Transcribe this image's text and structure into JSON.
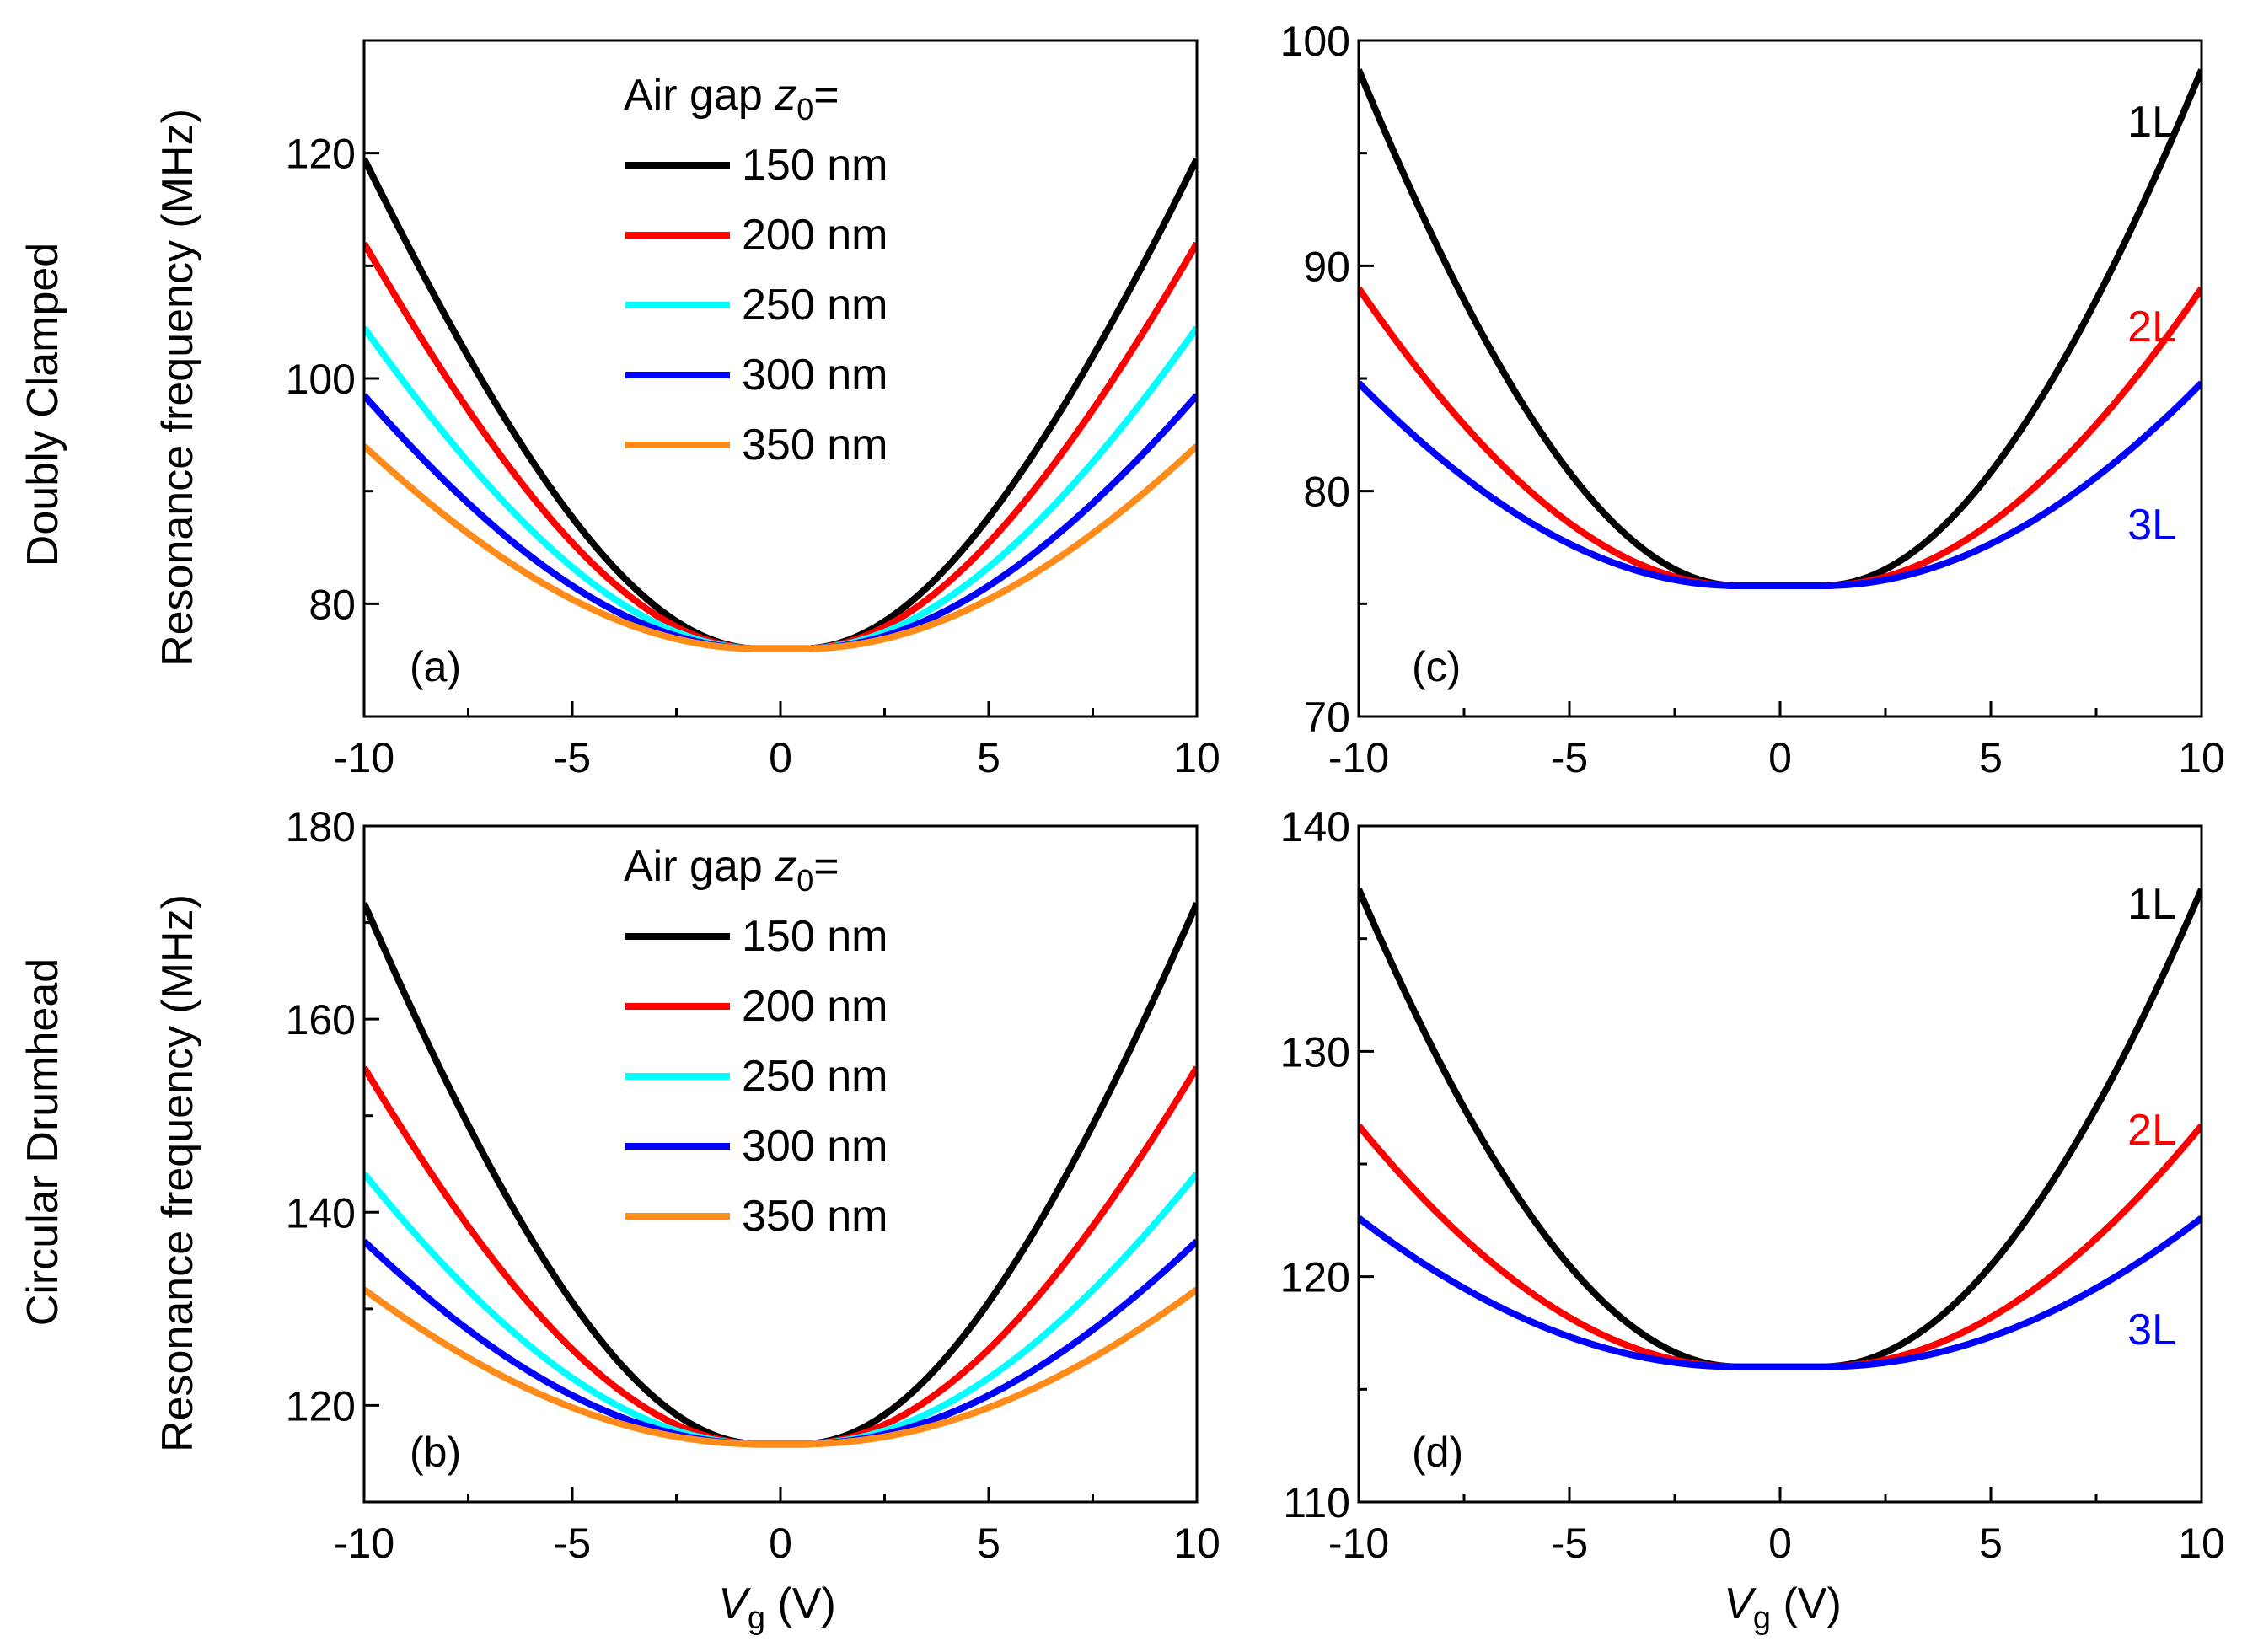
{
  "figure": {
    "row_labels": [
      "Doubly Clamped",
      "Circular Drumhead"
    ],
    "xlabel_var": "V",
    "xlabel_sub": "g",
    "xlabel_unit": " (V)",
    "ylabel": "Resonance frequency (MHz)"
  },
  "colors": {
    "black": "#000000",
    "red": "#ff0000",
    "cyan": "#00ffff",
    "blue": "#0000ff",
    "orange": "#ff8c1a"
  },
  "chart_data": [
    {
      "id": "a",
      "type": "line",
      "panel_label": "(a)",
      "xlim": [
        -10,
        10
      ],
      "ylim": [
        70,
        130
      ],
      "xticks": [
        -10,
        -5,
        0,
        5,
        10
      ],
      "yticks": [
        80,
        100,
        120
      ],
      "legend": {
        "title_text": "Air gap ",
        "title_var": "z",
        "title_sub": "0",
        "title_eq": "="
      },
      "flat_halfwidth": 0.5,
      "series": [
        {
          "name": "150 nm",
          "color": "#000000",
          "f0": 76,
          "f_at_10": 119.5
        },
        {
          "name": "200 nm",
          "color": "#ff0000",
          "f0": 76,
          "f_at_10": 112
        },
        {
          "name": "250 nm",
          "color": "#00ffff",
          "f0": 76,
          "f_at_10": 104.5
        },
        {
          "name": "300 nm",
          "color": "#0000ff",
          "f0": 76,
          "f_at_10": 98.5
        },
        {
          "name": "350 nm",
          "color": "#ff8c1a",
          "f0": 76,
          "f_at_10": 94
        }
      ]
    },
    {
      "id": "b",
      "type": "line",
      "panel_label": "(b)",
      "xlim": [
        -10,
        10
      ],
      "ylim": [
        110,
        180
      ],
      "xticks": [
        -10,
        -5,
        0,
        5,
        10
      ],
      "yticks": [
        120,
        140,
        160,
        180
      ],
      "legend": {
        "title_text": "Air gap ",
        "title_var": "z",
        "title_sub": "0",
        "title_eq": "="
      },
      "flat_halfwidth": 0.5,
      "series": [
        {
          "name": "150 nm",
          "color": "#000000",
          "f0": 116,
          "f_at_10": 172
        },
        {
          "name": "200 nm",
          "color": "#ff0000",
          "f0": 116,
          "f_at_10": 155
        },
        {
          "name": "250 nm",
          "color": "#00ffff",
          "f0": 116,
          "f_at_10": 144
        },
        {
          "name": "300 nm",
          "color": "#0000ff",
          "f0": 116,
          "f_at_10": 137
        },
        {
          "name": "350 nm",
          "color": "#ff8c1a",
          "f0": 116,
          "f_at_10": 132
        }
      ]
    },
    {
      "id": "c",
      "type": "line",
      "panel_label": "(c)",
      "xlim": [
        -10,
        10
      ],
      "ylim": [
        70,
        100
      ],
      "xticks": [
        -10,
        -5,
        0,
        5,
        10
      ],
      "yticks": [
        70,
        80,
        90,
        100
      ],
      "flat_halfwidth": 1,
      "series": [
        {
          "name": "1L",
          "color": "#000000",
          "f0": 75.8,
          "f_at_10": 98.7
        },
        {
          "name": "2L",
          "color": "#ff0000",
          "f0": 75.8,
          "f_at_10": 89
        },
        {
          "name": "3L",
          "color": "#0000ff",
          "f0": 75.8,
          "f_at_10": 84.8
        }
      ]
    },
    {
      "id": "d",
      "type": "line",
      "panel_label": "(d)",
      "xlim": [
        -10,
        10
      ],
      "ylim": [
        110,
        140
      ],
      "xticks": [
        -10,
        -5,
        0,
        5,
        10
      ],
      "yticks": [
        110,
        120,
        130,
        140
      ],
      "flat_halfwidth": 1,
      "series": [
        {
          "name": "1L",
          "color": "#000000",
          "f0": 116,
          "f_at_10": 137.2
        },
        {
          "name": "2L",
          "color": "#ff0000",
          "f0": 116,
          "f_at_10": 126.7
        },
        {
          "name": "3L",
          "color": "#0000ff",
          "f0": 116,
          "f_at_10": 122.6
        }
      ]
    }
  ]
}
